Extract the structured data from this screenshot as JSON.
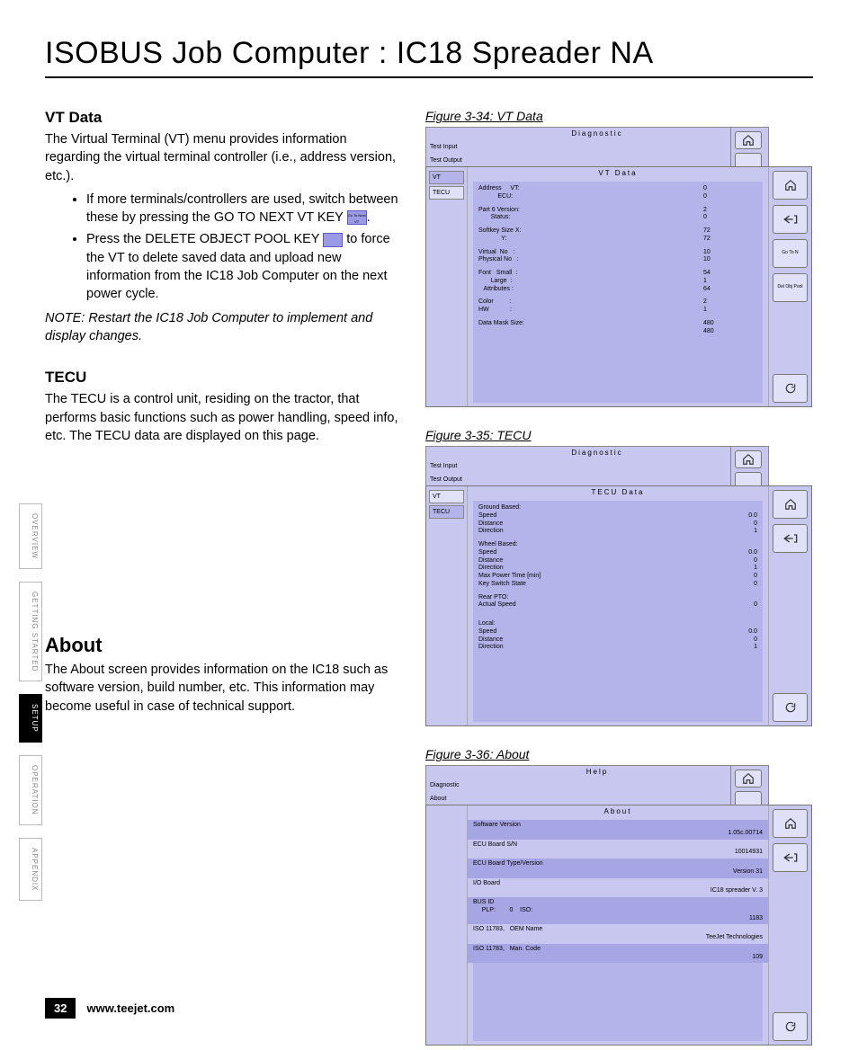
{
  "page": {
    "title": "ISOBUS Job Computer : IC18 Spreader NA",
    "number": "32",
    "url": "www.teejet.com"
  },
  "side_tabs": {
    "items": [
      {
        "label": "OVERVIEW",
        "active": false
      },
      {
        "label": "GETTING STARTED",
        "active": false
      },
      {
        "label": "SETUP",
        "active": true
      },
      {
        "label": "OPERATION",
        "active": false
      },
      {
        "label": "APPENDIX",
        "active": false
      }
    ]
  },
  "left": {
    "vt": {
      "heading": "VT Data",
      "para": "The Virtual Terminal (VT) menu provides information regarding the virtual terminal controller (i.e., address version, etc.).",
      "bullet1a": "If more terminals/controllers are used, switch between these by pressing the GO TO NEXT VT KEY ",
      "bullet1b": ".",
      "key1_label": "Go To\nNext VT",
      "bullet2a": "Press the DELETE OBJECT POOL KEY ",
      "bullet2b": " to force the VT to delete saved data and upload new information from the IC18 Job Computer on the next power cycle.",
      "key2_label": "",
      "note_label": "NOTE:",
      "note": "  Restart the IC18 Job Computer to implement and display changes."
    },
    "tecu": {
      "heading": "TECU",
      "para": "The TECU is a control unit, residing on the tractor, that performs basic functions such as power handling, speed info, etc. The TECU data are displayed on this page."
    },
    "about": {
      "heading": "About",
      "para": "The About screen provides information on the IC18 such as software version, build number, etc. This information may become useful in case of technical support."
    }
  },
  "figs": {
    "vt": {
      "caption": "Figure 3-34: VT Data",
      "back": {
        "title": "Diagnostic",
        "row1": "Test Input",
        "row2": "Test Output"
      },
      "front": {
        "title": "VT Data",
        "left_tabs": [
          "VT",
          "TECU"
        ],
        "active_tab": 0,
        "softkeys": [
          "home",
          "back",
          "Go To N",
          "Del Obj\nPool",
          "",
          "",
          "refresh"
        ],
        "rows": [
          {
            "l": "Address     VT:",
            "v": "0"
          },
          {
            "l": "           ECU:",
            "v": "0"
          },
          {
            "gap": true
          },
          {
            "l": "Part 6 Version:",
            "v": "2"
          },
          {
            "l": "       Status:",
            "v": "0"
          },
          {
            "gap": true
          },
          {
            "l": "Softkey Size X:",
            "v": "72"
          },
          {
            "l": "             Y:",
            "v": "72"
          },
          {
            "gap": true
          },
          {
            "l": "Virtual  No   :",
            "v": "10"
          },
          {
            "l": "Physical No   :",
            "v": "10"
          },
          {
            "gap": true
          },
          {
            "l": "Font   Small  :",
            "v": "54"
          },
          {
            "l": "       Large  :",
            "v": "1"
          },
          {
            "l": "   Attributes :",
            "v": "64"
          },
          {
            "gap": true
          },
          {
            "l": "Color         :",
            "v": "2"
          },
          {
            "l": "HW            :",
            "v": "1"
          },
          {
            "gap": true
          },
          {
            "l": "Data Mask Size:",
            "v": "480"
          },
          {
            "l": "               ",
            "v": "480"
          }
        ]
      }
    },
    "tecu": {
      "caption": "Figure 3-35: TECU",
      "back": {
        "title": "Diagnostic",
        "row1": "Test Input",
        "row2": "Test Output"
      },
      "front": {
        "title": "TECU Data",
        "left_tabs": [
          "VT",
          "TECU"
        ],
        "active_tab": 1,
        "softkeys": [
          "home",
          "back",
          "",
          "",
          "",
          "",
          "refresh"
        ],
        "rows": [
          {
            "l": "Ground Based:",
            "v": ""
          },
          {
            "l": "Speed",
            "v": "0.0",
            "r": true
          },
          {
            "l": "Distance",
            "v": "0",
            "r": true
          },
          {
            "l": "Direction",
            "v": "1",
            "r": true
          },
          {
            "gap": true
          },
          {
            "l": "Wheel Based:",
            "v": ""
          },
          {
            "l": "Speed",
            "v": "0.0",
            "r": true
          },
          {
            "l": "Distance",
            "v": "0",
            "r": true
          },
          {
            "l": "Direction",
            "v": "1",
            "r": true
          },
          {
            "l": "Max Power Time [min]",
            "v": "0",
            "r": true
          },
          {
            "l": "Key Switch State",
            "v": "0",
            "r": true
          },
          {
            "gap": true
          },
          {
            "l": "Rear PTO:",
            "v": ""
          },
          {
            "l": "Actual Speed",
            "v": "0",
            "r": true
          },
          {
            "gap": true
          },
          {
            "gap": true
          },
          {
            "l": "Local:",
            "v": ""
          },
          {
            "l": "Speed",
            "v": "0.0",
            "r": true
          },
          {
            "l": "Distance",
            "v": "0",
            "r": true
          },
          {
            "l": "Direction",
            "v": "1",
            "r": true
          }
        ]
      }
    },
    "about": {
      "caption": "Figure 3-36: About",
      "back": {
        "title": "Help",
        "row1": "Diagnostic",
        "row2": "About"
      },
      "front": {
        "title": "About",
        "left_tabs": [],
        "softkeys": [
          "home",
          "back",
          "",
          "",
          "",
          "",
          "refresh"
        ],
        "stripes": [
          {
            "l": "Software Version",
            "v": "1.05c.00714"
          },
          {
            "l": "ECU Board S/N",
            "v": "10014931"
          },
          {
            "l": "ECU Board Type/Version",
            "v": "Version 31"
          },
          {
            "l": "I/O Board",
            "v": "IC18 spreader V. 3"
          },
          {
            "l": "BUS ID\n     PLP:        0    ISO:",
            "v": "1183"
          },
          {
            "l": "ISO 11783,   OEM Name",
            "v": "TeeJet Technologies"
          },
          {
            "l": "ISO 11783,   Man. Code",
            "v": "109"
          }
        ]
      }
    }
  },
  "colors": {
    "panel_bg": "#c7c7f0",
    "panel_inner": "#b4b4ea",
    "softkey_bg": "#e0e0f8",
    "stripe_dark": "#a6a6e4"
  }
}
